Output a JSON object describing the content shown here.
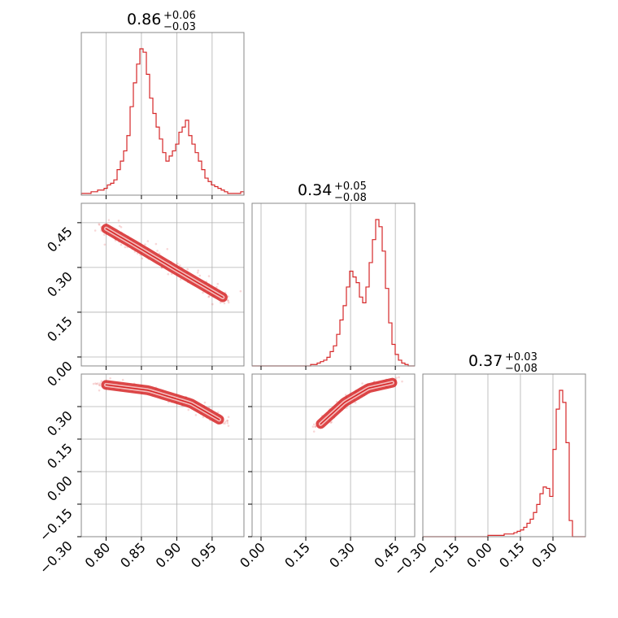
{
  "colors": {
    "series": "#d62728",
    "grid": "#b0b0b0",
    "frame": "#888888",
    "background": "#ffffff"
  },
  "chart_data": {
    "type": "corner",
    "parameters": [
      {
        "title_value": "0.86",
        "title_plus": "+0.06",
        "title_minus": "−0.03",
        "range": [
          0.765,
          0.995
        ],
        "ticks": [
          0.8,
          0.85,
          0.9,
          0.95
        ],
        "tick_labels": [
          "0.80",
          "0.85",
          "0.90",
          "0.95"
        ]
      },
      {
        "title_value": "0.34",
        "title_plus": "+0.05",
        "title_minus": "−0.08",
        "range": [
          -0.03,
          0.515
        ],
        "ticks": [
          0.0,
          0.15,
          0.3,
          0.45
        ],
        "tick_labels": [
          "0.00",
          "0.15",
          "0.30",
          "0.45"
        ]
      },
      {
        "title_value": "0.37",
        "title_plus": "+0.03",
        "title_minus": "−0.08",
        "range": [
          -0.3,
          0.45
        ],
        "ticks": [
          -0.3,
          -0.15,
          0.0,
          0.15,
          0.3
        ],
        "tick_labels": [
          "−0.30",
          "−0.15",
          "0.00",
          "0.15",
          "0.30"
        ]
      }
    ],
    "histograms": [
      {
        "param": 0,
        "bin_edges_start": 0.765,
        "bin_width": 0.0046,
        "counts": [
          1,
          1,
          1,
          2,
          2,
          3,
          3,
          4,
          6,
          7,
          9,
          15,
          20,
          26,
          35,
          52,
          66,
          77,
          86,
          84,
          71,
          57,
          48,
          40,
          33,
          25,
          20,
          23,
          26,
          30,
          37,
          40,
          44,
          35,
          30,
          25,
          20,
          15,
          10,
          8,
          6,
          5,
          4,
          3,
          2,
          1,
          1,
          1,
          1,
          2
        ]
      },
      {
        "param": 1,
        "bin_edges_start": -0.03,
        "bin_width": 0.0109,
        "counts": [
          0,
          0,
          0,
          0,
          0,
          0,
          0,
          0,
          0,
          0,
          0,
          0,
          0,
          0,
          0,
          0,
          0,
          0,
          1,
          1,
          2,
          3,
          4,
          6,
          10,
          14,
          22,
          32,
          42,
          55,
          66,
          62,
          58,
          48,
          44,
          55,
          72,
          88,
          102,
          97,
          80,
          54,
          30,
          15,
          8,
          4,
          2,
          1,
          0,
          0
        ]
      },
      {
        "param": 2,
        "bin_edges_start": -0.3,
        "bin_width": 0.015,
        "counts": [
          0,
          0,
          0,
          0,
          0,
          0,
          0,
          0,
          0,
          0,
          0,
          0,
          0,
          0,
          0,
          0,
          0,
          0,
          0,
          0,
          1,
          1,
          1,
          1,
          1,
          2,
          2,
          2,
          3,
          4,
          5,
          7,
          10,
          13,
          18,
          24,
          32,
          37,
          36,
          30,
          65,
          95,
          109,
          100,
          70,
          12,
          0,
          0,
          0,
          0
        ]
      }
    ],
    "joint": [
      {
        "x_param": 0,
        "y_param": 1,
        "ridge": [
          [
            0.8,
            0.43
          ],
          [
            0.84,
            0.375
          ],
          [
            0.9,
            0.29
          ],
          [
            0.965,
            0.2
          ]
        ],
        "width": 0.022
      },
      {
        "x_param": 0,
        "y_param": 2,
        "ridge": [
          [
            0.8,
            0.4
          ],
          [
            0.86,
            0.375
          ],
          [
            0.92,
            0.315
          ],
          [
            0.96,
            0.24
          ]
        ],
        "width": 0.016
      },
      {
        "x_param": 1,
        "y_param": 2,
        "ridge": [
          [
            0.2,
            0.22
          ],
          [
            0.28,
            0.32
          ],
          [
            0.36,
            0.385
          ],
          [
            0.44,
            0.41
          ]
        ],
        "width": 0.02
      }
    ]
  }
}
